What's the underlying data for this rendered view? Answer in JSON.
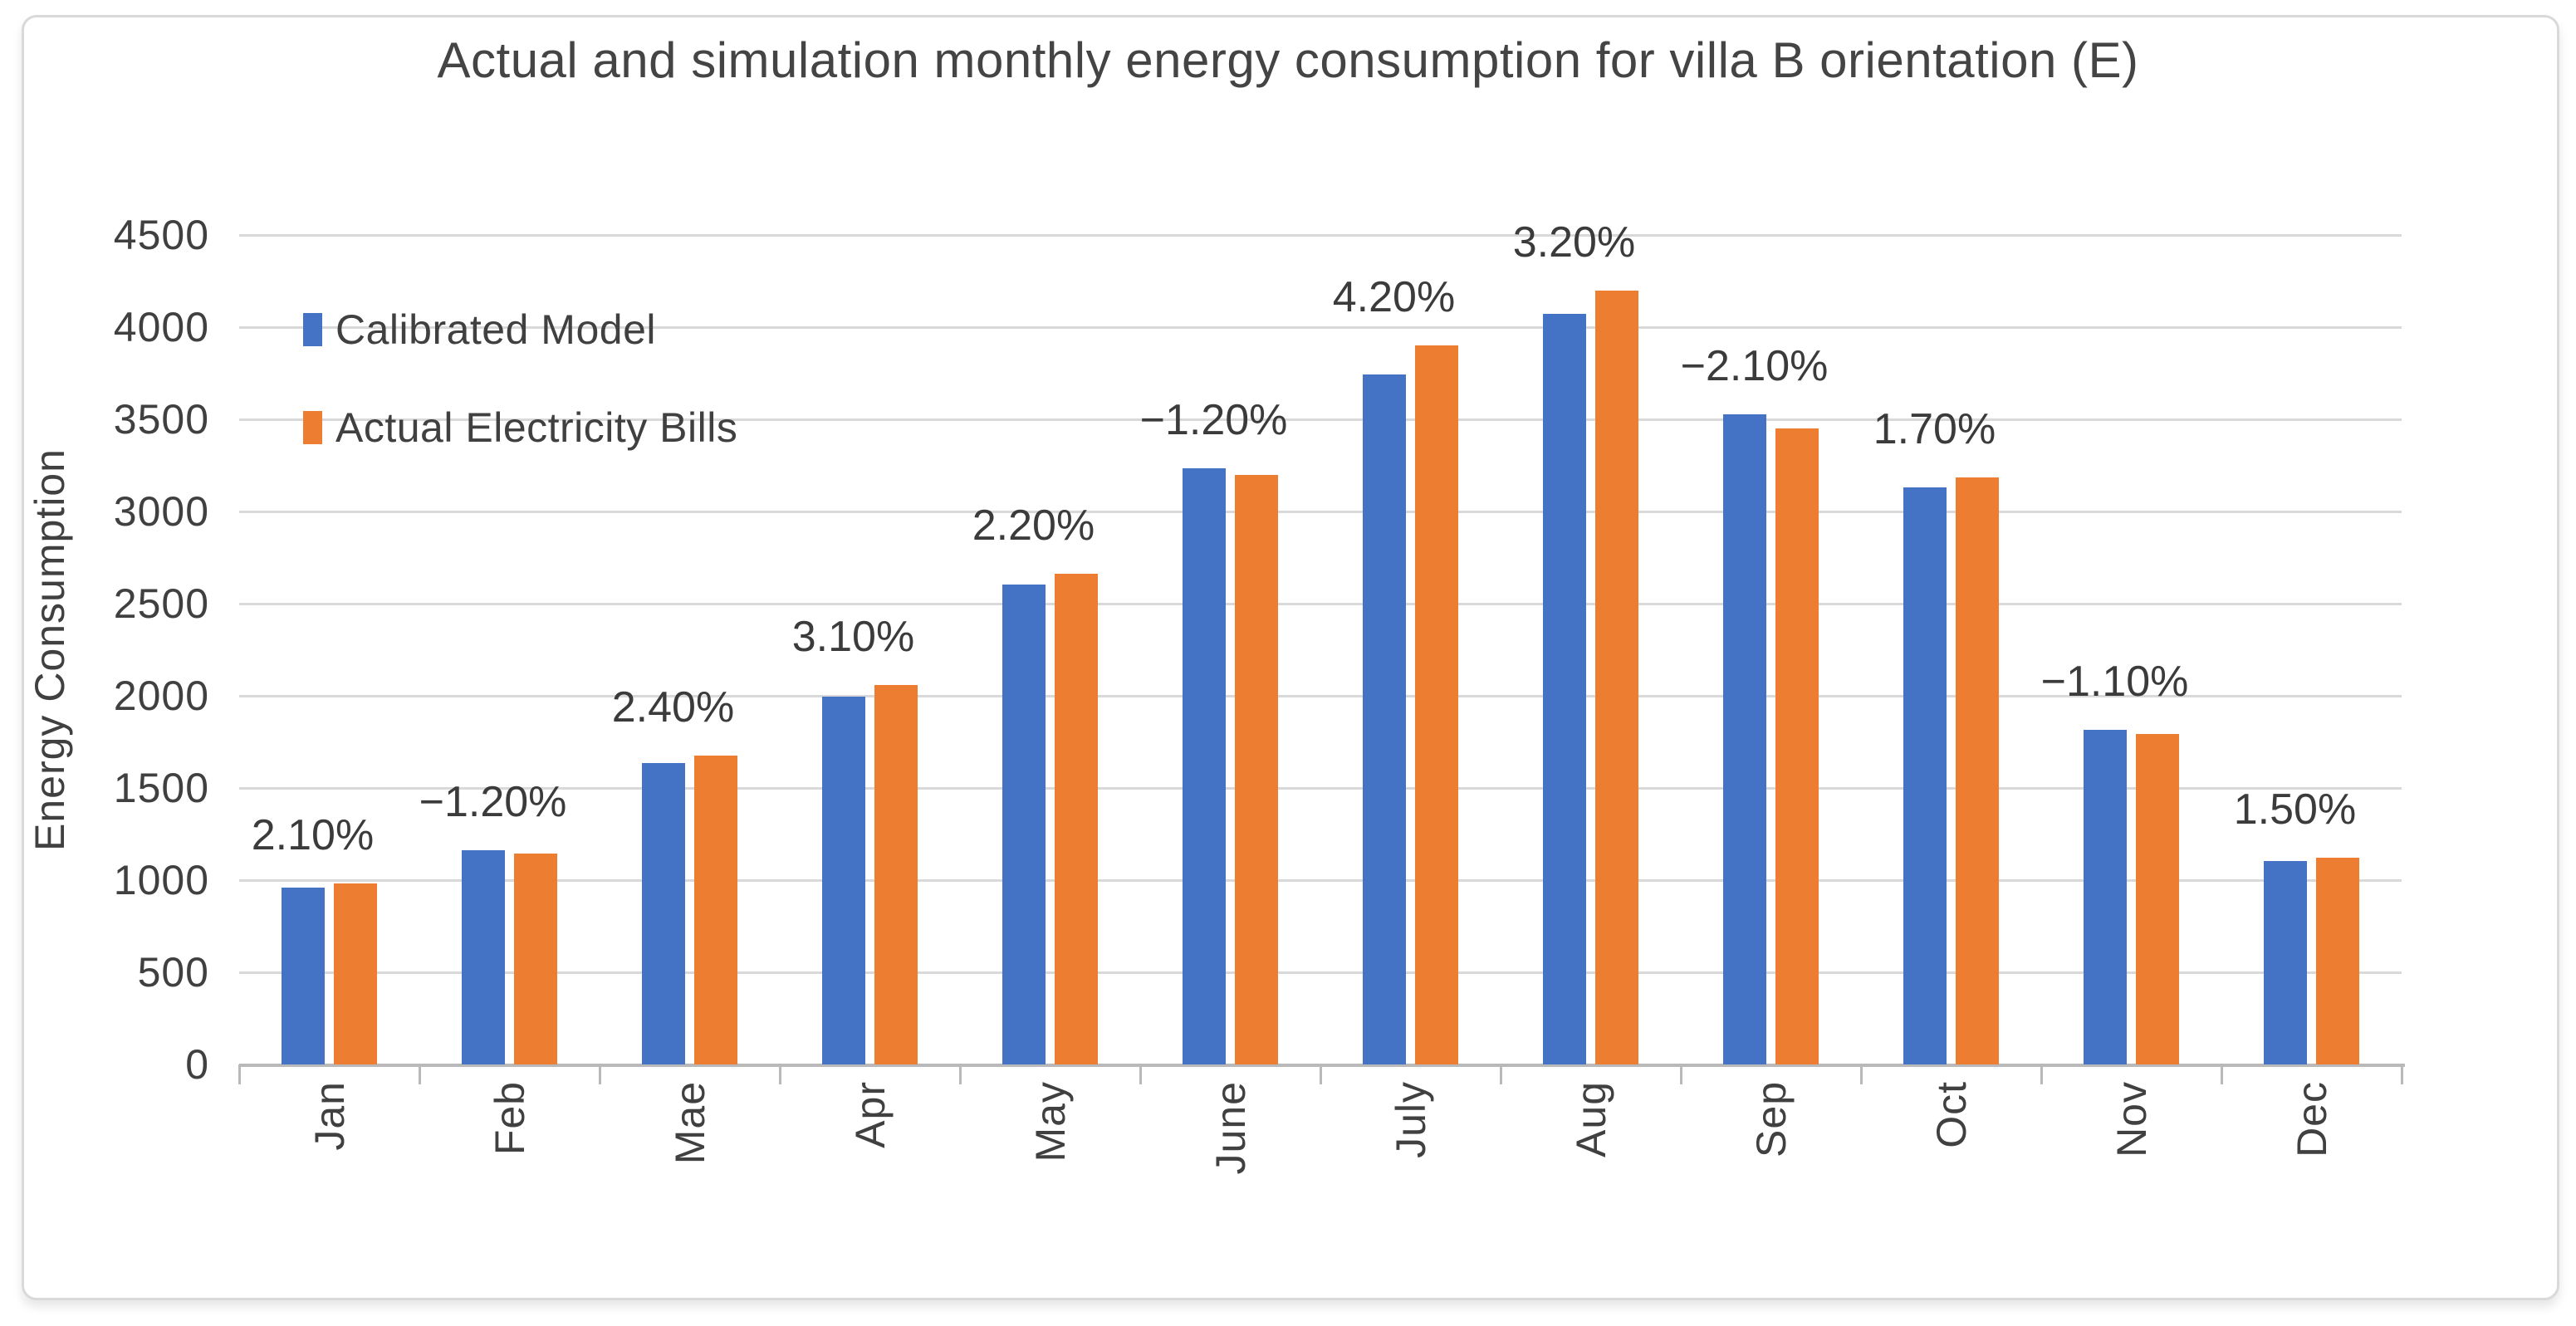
{
  "window": {
    "background": "#ffffff"
  },
  "colors": {
    "gridline": "#D9D9D9",
    "axis_line": "#B9B9B9",
    "text": "#404040",
    "title_text": "#444444",
    "frame_border": "#D9D9D9",
    "series_blue": "#4472C4",
    "series_orange": "#ED7D31"
  },
  "chart_data": {
    "type": "bar",
    "title": "Actual and simulation monthly energy consumption for villa B orientation (E)",
    "ylabel": "Energy Consumption",
    "xlabel": "",
    "ylim": [
      0,
      4500
    ],
    "ytick_step": 500,
    "yticks": [
      0,
      500,
      1000,
      1500,
      2000,
      2500,
      3000,
      3500,
      4000,
      4500
    ],
    "grid": true,
    "legend_position": "inside-top-left",
    "categories": [
      "Jan",
      "Feb",
      "Mae",
      "Apr",
      "May",
      "June",
      "July",
      "Aug",
      "Sep",
      "Oct",
      "Nov",
      "Dec"
    ],
    "series": [
      {
        "name": "Calibrated Model",
        "color": "#4472C4",
        "values": [
          960,
          1160,
          1635,
          1995,
          2605,
          3235,
          3745,
          4070,
          3525,
          3130,
          1815,
          1105
        ]
      },
      {
        "name": "Actual Electricity Bills",
        "color": "#ED7D31",
        "values": [
          981,
          1146,
          1674,
          2057,
          2662,
          3196,
          3902,
          4200,
          3451,
          3183,
          1795,
          1122
        ]
      }
    ],
    "data_labels": [
      "2.10%",
      "−1.20%",
      "2.40%",
      "3.10%",
      "2.20%",
      "−1.20%",
      "4.20%",
      "3.20%",
      "−2.10%",
      "1.70%",
      "−1.10%",
      "1.50%"
    ]
  }
}
